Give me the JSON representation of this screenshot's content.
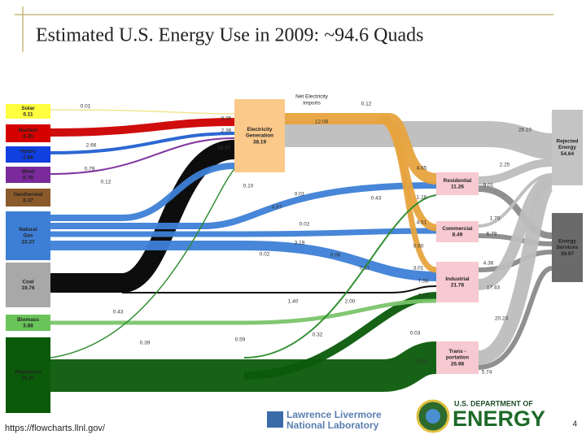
{
  "title": "Estimated U.S. Energy Use in 2009: ~94.6 Quads",
  "sources": [
    {
      "lines": [
        "Solar"
      ],
      "value": "0.11"
    },
    {
      "lines": [
        "Nuclear"
      ],
      "value": "8.35"
    },
    {
      "lines": [
        "Hydro"
      ],
      "value": "2.68"
    },
    {
      "lines": [
        "Wind"
      ],
      "value": "0.70"
    },
    {
      "lines": [
        "Geothermal"
      ],
      "value": "0.37"
    },
    {
      "lines": [
        "Natural",
        "Gas"
      ],
      "value": "23.37"
    },
    {
      "lines": [
        "Coal"
      ],
      "value": "19.76"
    },
    {
      "lines": [
        "Biomass"
      ],
      "value": "3.88"
    },
    {
      "lines": [
        "Petroleum"
      ],
      "value": "35.27"
    }
  ],
  "imports": {
    "lines": [
      "Net Electricity",
      "Imports"
    ]
  },
  "electricity": {
    "lines": [
      "Electricity",
      "Generation"
    ],
    "value": "38.19"
  },
  "sectors": [
    {
      "lines": [
        "Residential"
      ],
      "value": "11.26"
    },
    {
      "lines": [
        "Commercial"
      ],
      "value": "8.49"
    },
    {
      "lines": [
        "Industrial"
      ],
      "value": "21.78"
    },
    {
      "lines": [
        "Trans -",
        "portation"
      ],
      "value": "26.98"
    }
  ],
  "outputs": [
    {
      "lines": [
        "Rejected",
        "Energy"
      ],
      "value": "54.64"
    },
    {
      "lines": [
        "Energy",
        "Services"
      ],
      "value": "39.97"
    }
  ],
  "flow_labels": [
    "0.01",
    "8.35",
    "2.36",
    "2.66",
    "18.30",
    "0.79",
    "0.12",
    "0.10",
    "0.01",
    "0.12",
    "12.08",
    "4.65",
    "0.43",
    "1.16",
    "4.87",
    "0.02",
    "4.51",
    "3.19",
    "0.02",
    "0.06",
    "0.60",
    "0.11",
    "3.01",
    "7.58",
    "1.40",
    "2.00",
    "7.77",
    "0.43",
    "0.39",
    "0.59",
    "0.32",
    "0.03",
    "25.34",
    "26.10",
    "2.25",
    "9.01",
    "1.70",
    "6.79",
    "4.36",
    "17.43",
    "20.23",
    "5.74"
  ],
  "footer": {
    "url": "https://flowcharts.llnl.gov/",
    "llnl": [
      "Lawrence Livermore",
      "National Laboratory"
    ],
    "doe_small": "U.S. DEPARTMENT OF",
    "doe_big": "ENERGY",
    "page": "4"
  }
}
